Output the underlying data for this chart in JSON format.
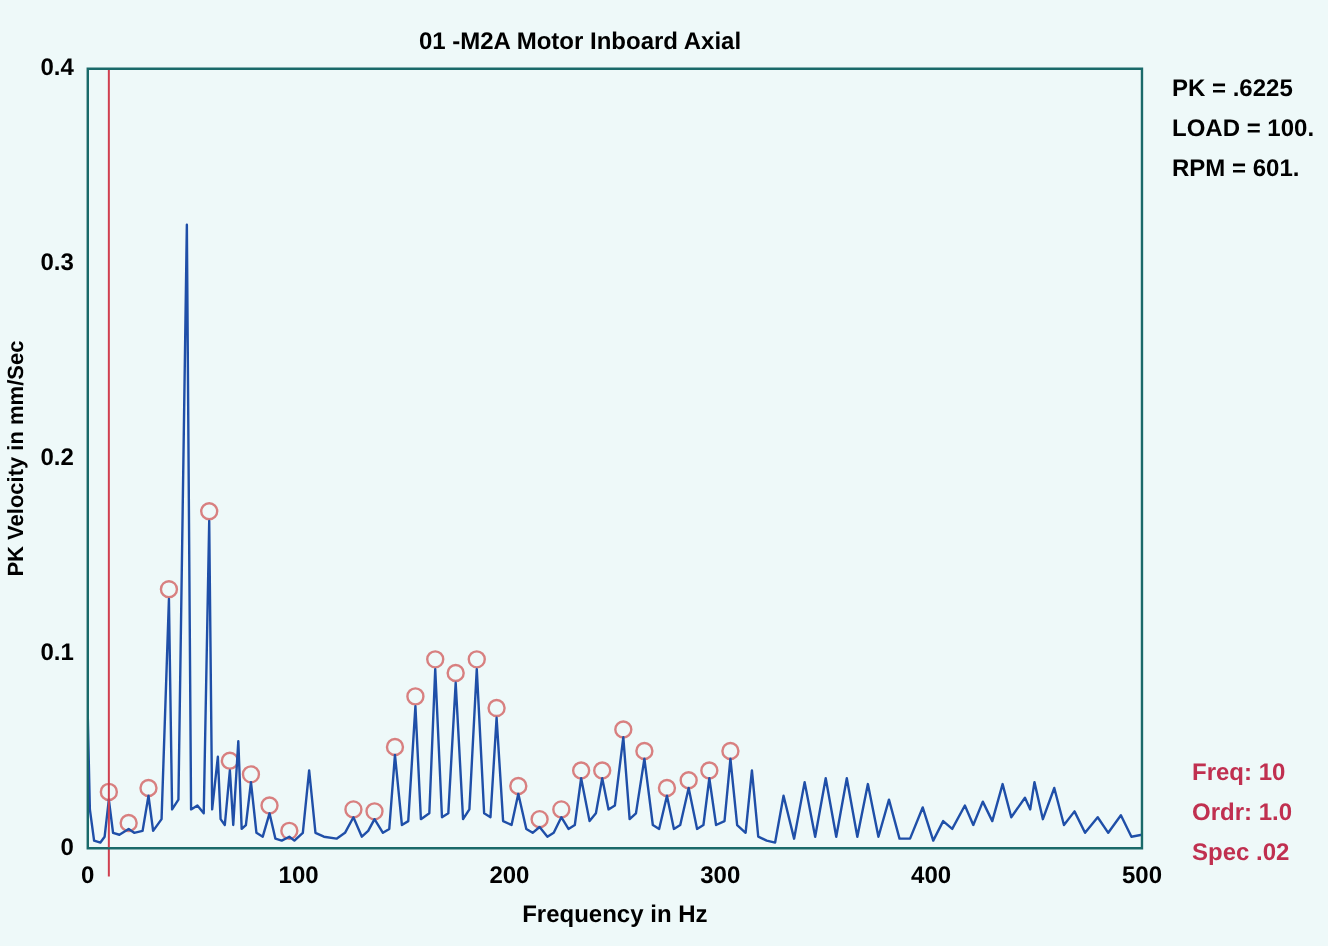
{
  "chart_data": {
    "type": "line",
    "title": "01 -M2A Motor Inboard Axial",
    "xlabel": "Frequency in Hz",
    "ylabel": "PK Velocity in mm/Sec",
    "xlim": [
      0,
      500
    ],
    "xticks": [
      0,
      100,
      200,
      300,
      400,
      500
    ],
    "ylim": [
      0,
      0.4
    ],
    "yticks": [
      0,
      0.1,
      0.2,
      0.3,
      0.4
    ],
    "grid": false,
    "legend": false,
    "annotations": [
      "PK = .6225",
      "LOAD = 100.",
      "RPM = 601.",
      "Freq: 10",
      "Ordr: 1.0",
      "Spec .02"
    ],
    "ref_lines": [
      {
        "axis": "x",
        "value": 10,
        "color": "#d04050"
      }
    ],
    "series": [
      {
        "type": "line",
        "color": "#1f4fa8",
        "marker": "none",
        "x": [
          0,
          1,
          3,
          6,
          8,
          10,
          12,
          15,
          19.4,
          22,
          26,
          28.8,
          31,
          35,
          38.5,
          40,
          43,
          47,
          49,
          52,
          55,
          57.6,
          59,
          61.7,
          63,
          65,
          67.4,
          69,
          71.4,
          73,
          75,
          77.4,
          80,
          83,
          86.2,
          89,
          92,
          95.6,
          98,
          102,
          105,
          108,
          112,
          118,
          122,
          126,
          130,
          133,
          136,
          140,
          143,
          145.7,
          149,
          152,
          155.4,
          158,
          162,
          164.8,
          168,
          171,
          174.5,
          178,
          181,
          184.5,
          188,
          191,
          193.9,
          197,
          201,
          204.2,
          208,
          211,
          214.3,
          218,
          221,
          224.6,
          228,
          231,
          234,
          238,
          241,
          244,
          247,
          250,
          254,
          257,
          260,
          264,
          268,
          271,
          274.7,
          278,
          281,
          285,
          289,
          292,
          294.8,
          298,
          302,
          304.8,
          308,
          312,
          315,
          318,
          322,
          326,
          330,
          335,
          340,
          345,
          350,
          355,
          360,
          365,
          370,
          375,
          380,
          385,
          390,
          396,
          401,
          405.7,
          410,
          416,
          420,
          424.5,
          429,
          433.9,
          438,
          444.5,
          447,
          449,
          453,
          458.4,
          463,
          468,
          473,
          479,
          484,
          490,
          495,
          500
        ],
        "values": [
          0.068,
          0.02,
          0.004,
          0.003,
          0.006,
          0.025,
          0.008,
          0.007,
          0.01,
          0.008,
          0.009,
          0.027,
          0.009,
          0.015,
          0.128,
          0.02,
          0.025,
          0.32,
          0.02,
          0.022,
          0.018,
          0.168,
          0.02,
          0.047,
          0.015,
          0.012,
          0.04,
          0.012,
          0.055,
          0.01,
          0.012,
          0.034,
          0.008,
          0.006,
          0.018,
          0.005,
          0.004,
          0.006,
          0.004,
          0.008,
          0.04,
          0.008,
          0.006,
          0.005,
          0.008,
          0.016,
          0.006,
          0.009,
          0.015,
          0.008,
          0.01,
          0.048,
          0.012,
          0.014,
          0.073,
          0.015,
          0.018,
          0.092,
          0.016,
          0.018,
          0.085,
          0.015,
          0.02,
          0.092,
          0.018,
          0.016,
          0.067,
          0.014,
          0.012,
          0.028,
          0.01,
          0.008,
          0.011,
          0.006,
          0.008,
          0.016,
          0.01,
          0.012,
          0.036,
          0.014,
          0.018,
          0.036,
          0.02,
          0.022,
          0.057,
          0.015,
          0.018,
          0.046,
          0.012,
          0.01,
          0.027,
          0.01,
          0.012,
          0.031,
          0.01,
          0.012,
          0.036,
          0.012,
          0.014,
          0.046,
          0.012,
          0.008,
          0.04,
          0.006,
          0.004,
          0.003,
          0.027,
          0.005,
          0.034,
          0.006,
          0.036,
          0.006,
          0.036,
          0.006,
          0.033,
          0.006,
          0.025,
          0.005,
          0.005,
          0.021,
          0.004,
          0.014,
          0.01,
          0.022,
          0.012,
          0.024,
          0.014,
          0.033,
          0.016,
          0.026,
          0.02,
          0.034,
          0.015,
          0.031,
          0.012,
          0.019,
          0.008,
          0.016,
          0.008,
          0.017,
          0.006,
          0.007
        ]
      },
      {
        "type": "scatter",
        "color": "#d88080",
        "marker": "circle",
        "x": [
          10,
          19.4,
          28.8,
          38.5,
          57.6,
          67.4,
          77.4,
          86.2,
          95.6,
          126,
          136,
          145.7,
          155.4,
          164.8,
          174.5,
          184.5,
          193.9,
          204.2,
          214.3,
          224.6,
          234,
          244,
          254,
          264,
          274.7,
          285,
          294.8,
          304.8
        ],
        "values": [
          0.029,
          0.013,
          0.031,
          0.133,
          0.173,
          0.045,
          0.038,
          0.022,
          0.009,
          0.02,
          0.019,
          0.052,
          0.078,
          0.097,
          0.09,
          0.097,
          0.072,
          0.032,
          0.015,
          0.02,
          0.04,
          0.04,
          0.061,
          0.05,
          0.031,
          0.035,
          0.04,
          0.05
        ]
      }
    ]
  }
}
